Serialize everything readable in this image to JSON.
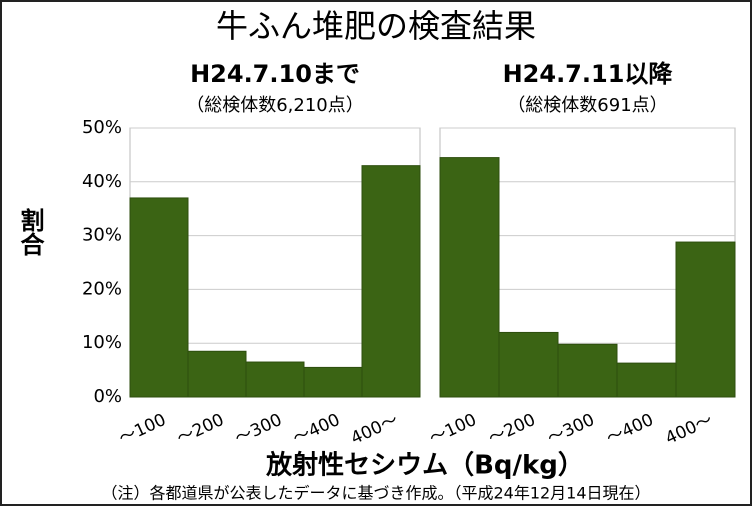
{
  "title": "牛ふん堆肥の検査結果",
  "y_label": "割合",
  "x_label": "放射性セシウム（Bq/kg）",
  "note": "（注）各都道県が公表したデータに基づき作成。（平成24年12月14日現在）",
  "chart_data": [
    {
      "type": "bar",
      "title": "H24.7.10まで",
      "subtitle": "（総検体数6,210点）",
      "categories": [
        "～100",
        "～200",
        "～300",
        "～400",
        "400～"
      ],
      "values": [
        37,
        8.5,
        6.5,
        5.5,
        43
      ],
      "color": "#3b6414",
      "ylim": [
        0,
        50
      ],
      "yticks": [
        {
          "value": 0,
          "label": "0%"
        },
        {
          "value": 10,
          "label": "10%"
        },
        {
          "value": 20,
          "label": "20%"
        },
        {
          "value": 30,
          "label": "30%"
        },
        {
          "value": 40,
          "label": "40%"
        },
        {
          "value": 50,
          "label": "50%"
        }
      ],
      "grid": true
    },
    {
      "type": "bar",
      "title": "H24.7.11以降",
      "subtitle": "（総検体数691点）",
      "categories": [
        "～100",
        "～200",
        "～300",
        "～400",
        "400～"
      ],
      "values": [
        44.5,
        12,
        9.8,
        6.3,
        28.8
      ],
      "color": "#3b6414",
      "ylim": [
        0,
        50
      ],
      "yticks": [
        0,
        10,
        20,
        30,
        40,
        50
      ],
      "grid": true
    }
  ]
}
